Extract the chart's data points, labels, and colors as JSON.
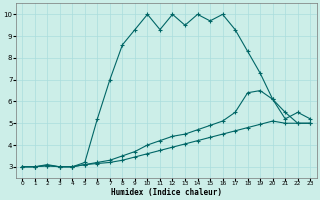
{
  "xlabel": "Humidex (Indice chaleur)",
  "background_color": "#cceee8",
  "grid_color": "#aadddd",
  "line_color": "#006666",
  "xlim": [
    -0.5,
    23.5
  ],
  "ylim": [
    2.5,
    10.5
  ],
  "xticks": [
    0,
    1,
    2,
    3,
    4,
    5,
    6,
    7,
    8,
    9,
    10,
    11,
    12,
    13,
    14,
    15,
    16,
    17,
    18,
    19,
    20,
    21,
    22,
    23
  ],
  "yticks": [
    3,
    4,
    5,
    6,
    7,
    8,
    9,
    10
  ],
  "s1_x": [
    0,
    1,
    2,
    3,
    4,
    5,
    6,
    7,
    8,
    9,
    10,
    11,
    12,
    13,
    14,
    15,
    16,
    17,
    18,
    19,
    20,
    21,
    22,
    23
  ],
  "s1_y": [
    3.0,
    3.0,
    3.05,
    3.0,
    3.0,
    3.1,
    3.15,
    3.2,
    3.3,
    3.45,
    3.6,
    3.75,
    3.9,
    4.05,
    4.2,
    4.35,
    4.5,
    4.65,
    4.8,
    4.95,
    5.1,
    5.0,
    5.0,
    5.0
  ],
  "s2_x": [
    0,
    1,
    2,
    3,
    4,
    5,
    6,
    7,
    8,
    9,
    10,
    11,
    12,
    13,
    14,
    15,
    16,
    17,
    18,
    19,
    20,
    21,
    22,
    23
  ],
  "s2_y": [
    3.0,
    3.0,
    3.05,
    3.0,
    3.0,
    3.1,
    3.2,
    3.3,
    3.5,
    3.7,
    4.0,
    4.2,
    4.4,
    4.5,
    4.7,
    4.9,
    5.1,
    5.5,
    6.4,
    6.5,
    6.1,
    5.5,
    5.0,
    5.0
  ],
  "s3_x": [
    0,
    1,
    2,
    3,
    4,
    5,
    6,
    7,
    8,
    9,
    10,
    11,
    12,
    13,
    14,
    15,
    16,
    17,
    18,
    19,
    20,
    21,
    22,
    23
  ],
  "s3_y": [
    3.0,
    3.0,
    3.1,
    3.0,
    3.0,
    3.2,
    5.2,
    7.0,
    8.6,
    9.3,
    10.0,
    9.3,
    10.0,
    9.5,
    10.0,
    9.7,
    10.0,
    9.3,
    8.3,
    7.3,
    6.1,
    5.2,
    5.5,
    5.2
  ]
}
